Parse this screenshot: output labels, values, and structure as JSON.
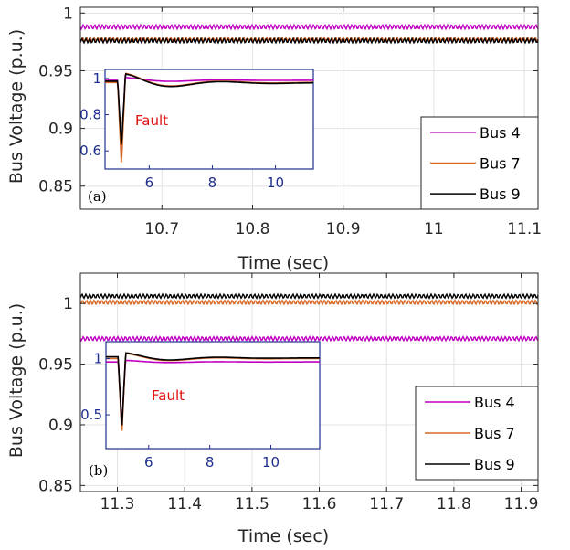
{
  "colors": {
    "bus4": "#c000c0",
    "bus7": "#d86a28",
    "bus9": "#000000",
    "inset_axis": "#1f2f8f",
    "fault_text": "#e01010"
  },
  "chart_data": [
    {
      "type": "line",
      "panel_label": "(a)",
      "xlabel": "Time (sec)",
      "ylabel": "Bus Voltage (p.u.)",
      "xlim": [
        10.61,
        11.115
      ],
      "ylim": [
        0.83,
        1.005
      ],
      "xticks": [
        "10.7",
        "10.8",
        "10.9",
        "11",
        "11.1"
      ],
      "yticks": [
        "0.85",
        "0.9",
        "0.95",
        "1"
      ],
      "grid": true,
      "legend_position": "bottom-right",
      "series": [
        {
          "name": "Bus 4",
          "y": 0.988,
          "ripple": 0.0018
        },
        {
          "name": "Bus 7",
          "y": 0.977,
          "ripple": 0.0018
        },
        {
          "name": "Bus 9",
          "y": 0.976,
          "ripple": 0.0018
        }
      ],
      "inset": {
        "annotation": "Fault",
        "xlim": [
          4.6,
          11.2
        ],
        "ylim": [
          0.5,
          1.05
        ],
        "xticks": [
          "6",
          "8",
          "10"
        ],
        "yticks": [
          "0.6",
          "0.8",
          "1"
        ],
        "fault_time": 5.0,
        "series": [
          {
            "name": "Bus 4",
            "dip": 0.57,
            "final": 0.99
          },
          {
            "name": "Bus 7",
            "dip": 0.52,
            "final": 0.978
          },
          {
            "name": "Bus 9",
            "dip": 0.62,
            "final": 0.975
          }
        ]
      }
    },
    {
      "type": "line",
      "panel_label": "(b)",
      "xlabel": "Time (sec)",
      "ylabel": "Bus Voltage (p.u.)",
      "xlim": [
        11.245,
        11.925
      ],
      "ylim": [
        0.845,
        1.025
      ],
      "xticks": [
        "11.3",
        "11.4",
        "11.5",
        "11.6",
        "11.7",
        "11.8",
        "11.9"
      ],
      "yticks": [
        "0.85",
        "0.9",
        "0.95",
        "1"
      ],
      "grid": true,
      "legend_position": "bottom-right",
      "series": [
        {
          "name": "Bus 4",
          "y": 0.971,
          "ripple": 0.0016
        },
        {
          "name": "Bus 7",
          "y": 1.001,
          "ripple": 0.0016
        },
        {
          "name": "Bus 9",
          "y": 1.006,
          "ripple": 0.0016
        }
      ],
      "inset": {
        "annotation": "Fault",
        "xlim": [
          4.6,
          11.6
        ],
        "ylim": [
          0.2,
          1.15
        ],
        "xticks": [
          "6",
          "8",
          "10"
        ],
        "yticks": [
          "0.5",
          "1"
        ],
        "fault_time": 5.0,
        "series": [
          {
            "name": "Bus 4",
            "dip": 0.4,
            "final": 0.97
          },
          {
            "name": "Bus 7",
            "dip": 0.33,
            "final": 1.0
          },
          {
            "name": "Bus 9",
            "dip": 0.38,
            "final": 1.005
          }
        ]
      }
    }
  ]
}
